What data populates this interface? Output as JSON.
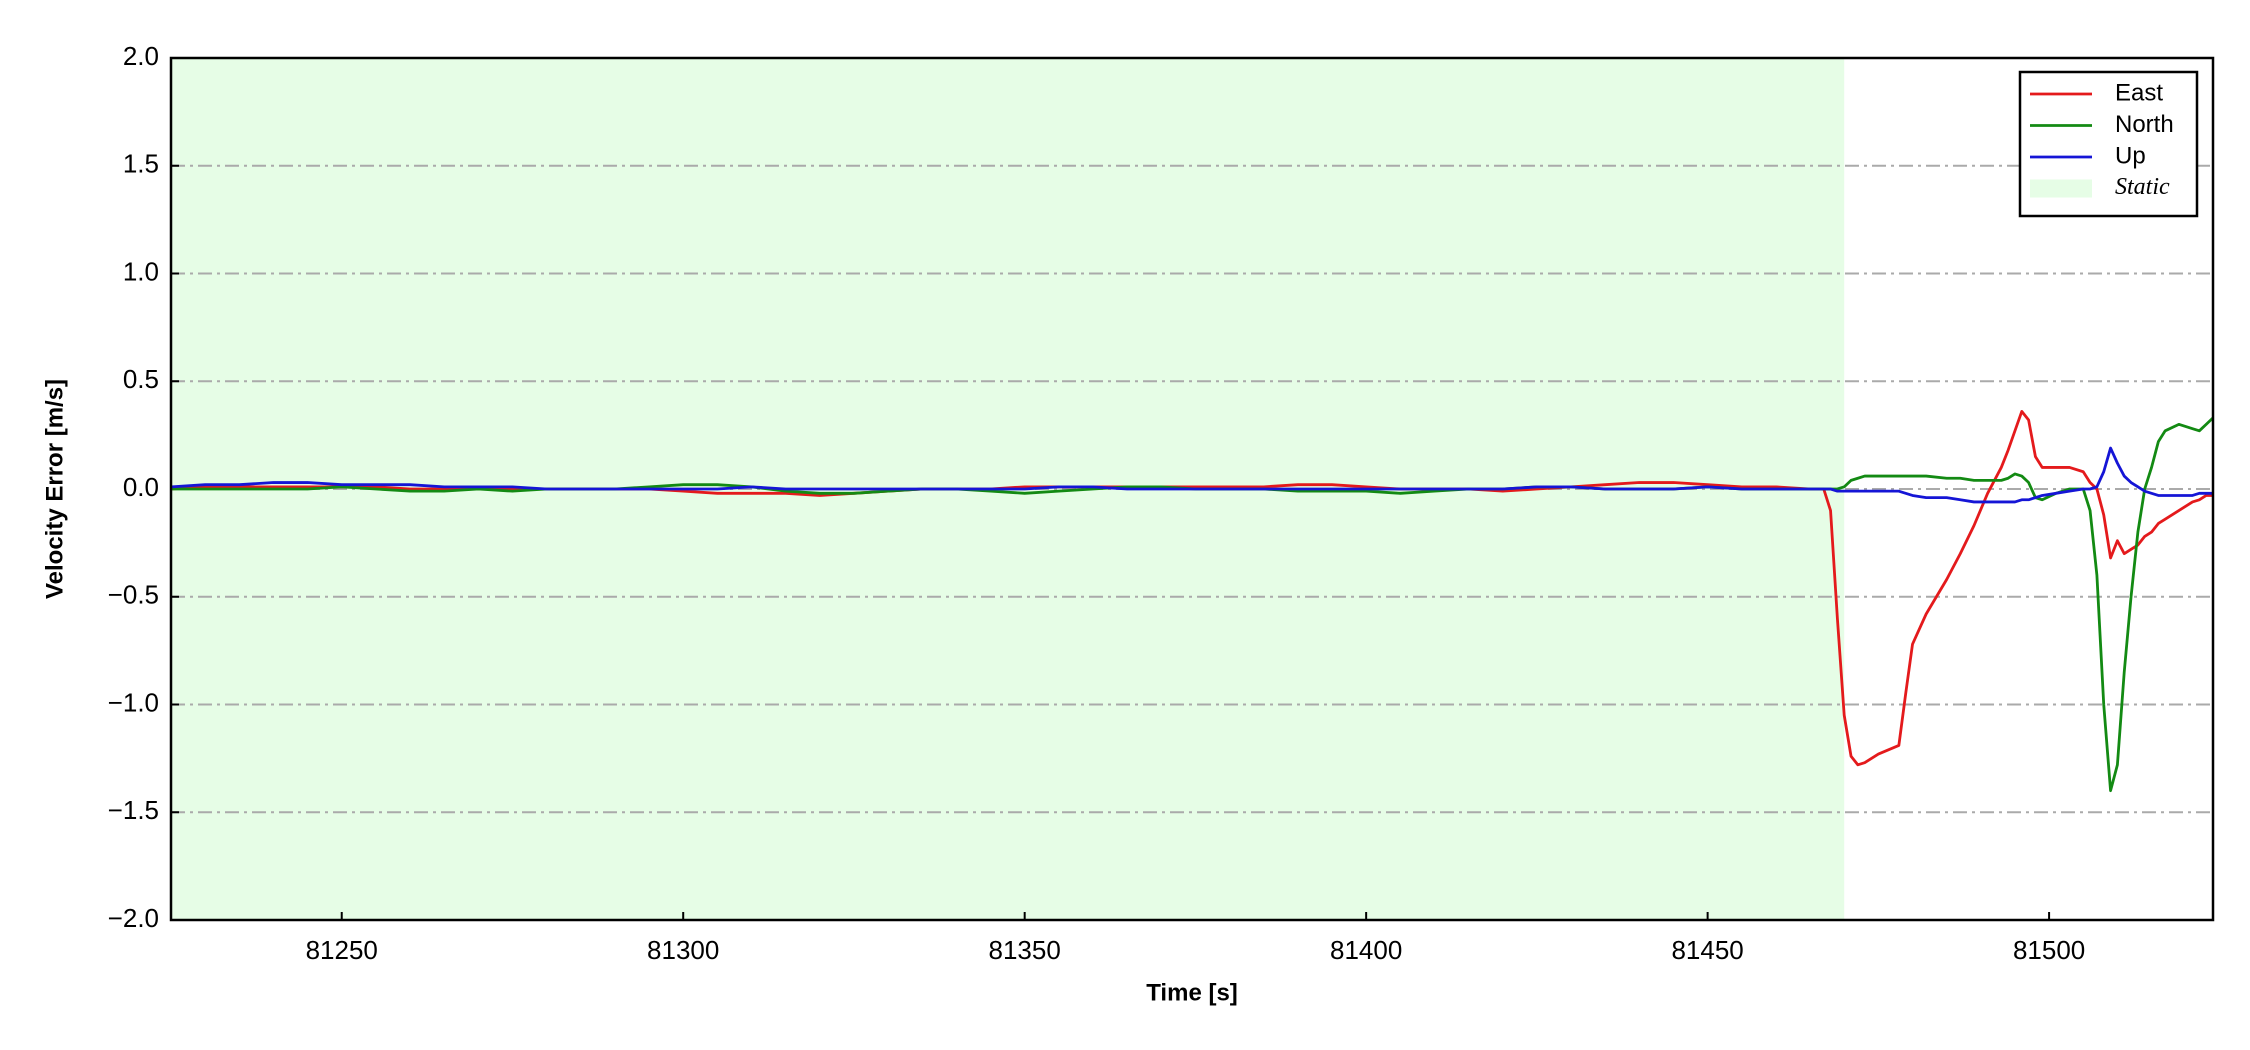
{
  "chart_data": {
    "type": "line",
    "xlabel": "Time [s]",
    "ylabel": "Velocity Error [m/s]",
    "xlim": [
      81225,
      81524
    ],
    "ylim": [
      -2.0,
      2.0
    ],
    "xticks": [
      81250,
      81300,
      81350,
      81400,
      81450,
      81500
    ],
    "yticks": [
      {
        "value": -2.0,
        "label": "−2.0"
      },
      {
        "value": -1.5,
        "label": "−1.5"
      },
      {
        "value": -1.0,
        "label": "−1.0"
      },
      {
        "value": -0.5,
        "label": "−0.5"
      },
      {
        "value": 0.0,
        "label": "0.0"
      },
      {
        "value": 0.5,
        "label": "0.5"
      },
      {
        "value": 1.0,
        "label": "1.0"
      },
      {
        "value": 1.5,
        "label": "1.5"
      },
      {
        "value": 2.0,
        "label": "2.0"
      }
    ],
    "grid": true,
    "legend": "upper right",
    "static_region": {
      "name": "Static",
      "color": "#e6fde6",
      "x": [
        81225,
        81470
      ]
    },
    "x": [
      81225,
      81230,
      81235,
      81240,
      81245,
      81250,
      81255,
      81260,
      81265,
      81270,
      81275,
      81280,
      81285,
      81290,
      81295,
      81300,
      81305,
      81310,
      81315,
      81320,
      81325,
      81330,
      81335,
      81340,
      81345,
      81350,
      81355,
      81360,
      81365,
      81370,
      81375,
      81380,
      81385,
      81390,
      81395,
      81400,
      81405,
      81410,
      81415,
      81420,
      81425,
      81430,
      81435,
      81440,
      81445,
      81450,
      81455,
      81460,
      81465,
      81467,
      81468,
      81469,
      81470,
      81471,
      81472,
      81473,
      81475,
      81478,
      81479,
      81480,
      81482,
      81485,
      81487,
      81489,
      81491,
      81493,
      81494,
      81495,
      81496,
      81497,
      81498,
      81499,
      81501,
      81503,
      81505,
      81506,
      81507,
      81508,
      81509,
      81510,
      81511,
      81512,
      81513,
      81514,
      81515,
      81516,
      81517,
      81519,
      81521,
      81522,
      81523,
      81524
    ],
    "series": [
      {
        "name": "East",
        "color": "#e41a1c",
        "values": [
          0,
          0.01,
          0.01,
          0.01,
          0.01,
          0.01,
          0.01,
          0,
          0,
          0,
          0,
          0,
          0,
          0,
          0,
          -0.01,
          -0.02,
          -0.02,
          -0.02,
          -0.03,
          -0.02,
          -0.01,
          0,
          0,
          0,
          0.01,
          0.01,
          0.01,
          0.01,
          0.01,
          0.01,
          0.01,
          0.01,
          0.02,
          0.02,
          0.01,
          0,
          0,
          0,
          -0.01,
          0,
          0.01,
          0.02,
          0.03,
          0.03,
          0.02,
          0.01,
          0.01,
          0,
          0,
          -0.1,
          -0.6,
          -1.05,
          -1.24,
          -1.28,
          -1.27,
          -1.23,
          -1.19,
          -0.95,
          -0.72,
          -0.58,
          -0.42,
          -0.3,
          -0.17,
          -0.02,
          0.1,
          0.18,
          0.27,
          0.36,
          0.32,
          0.15,
          0.1,
          0.1,
          0.1,
          0.08,
          0.03,
          0,
          -0.12,
          -0.32,
          -0.24,
          -0.3,
          -0.28,
          -0.26,
          -0.22,
          -0.2,
          -0.16,
          -0.14,
          -0.1,
          -0.06,
          -0.05,
          -0.03,
          -0.03
        ]
      },
      {
        "name": "North",
        "color": "#138a13",
        "values": [
          0,
          0,
          0,
          0,
          0,
          0.01,
          0,
          -0.01,
          -0.01,
          0,
          -0.01,
          0,
          0,
          0,
          0.01,
          0.02,
          0.02,
          0.01,
          -0.01,
          -0.02,
          -0.02,
          -0.01,
          0,
          0,
          -0.01,
          -0.02,
          -0.01,
          0,
          0.01,
          0.01,
          0,
          0,
          0,
          -0.01,
          -0.01,
          -0.01,
          -0.02,
          -0.01,
          0,
          0,
          0.01,
          0.01,
          0,
          0,
          0,
          0.01,
          0,
          0,
          0,
          0,
          0,
          0,
          0.01,
          0.04,
          0.05,
          0.06,
          0.06,
          0.06,
          0.06,
          0.06,
          0.06,
          0.05,
          0.05,
          0.04,
          0.04,
          0.04,
          0.05,
          0.07,
          0.06,
          0.03,
          -0.04,
          -0.05,
          -0.02,
          0,
          0,
          -0.1,
          -0.4,
          -1.0,
          -1.4,
          -1.28,
          -0.85,
          -0.5,
          -0.2,
          0,
          0.1,
          0.22,
          0.27,
          0.3,
          0.28,
          0.27,
          0.3,
          0.33
        ]
      },
      {
        "name": "Up",
        "color": "#1515d6",
        "values": [
          0.01,
          0.02,
          0.02,
          0.03,
          0.03,
          0.02,
          0.02,
          0.02,
          0.01,
          0.01,
          0.01,
          0,
          0,
          0,
          0,
          0,
          0,
          0.01,
          0,
          0,
          0,
          0,
          0,
          0,
          0,
          0,
          0.01,
          0.01,
          0,
          0,
          0,
          0,
          0,
          0,
          0,
          0,
          0,
          0,
          0,
          0,
          0.01,
          0.01,
          0,
          0,
          0,
          0.01,
          0,
          0,
          0,
          0,
          0,
          -0.01,
          -0.01,
          -0.01,
          -0.01,
          -0.01,
          -0.01,
          -0.01,
          -0.02,
          -0.03,
          -0.04,
          -0.04,
          -0.05,
          -0.06,
          -0.06,
          -0.06,
          -0.06,
          -0.06,
          -0.05,
          -0.05,
          -0.04,
          -0.03,
          -0.02,
          -0.01,
          0,
          0,
          0.01,
          0.08,
          0.19,
          0.12,
          0.06,
          0.03,
          0.01,
          -0.01,
          -0.02,
          -0.03,
          -0.03,
          -0.03,
          -0.03,
          -0.02,
          -0.02,
          -0.02
        ]
      }
    ]
  }
}
